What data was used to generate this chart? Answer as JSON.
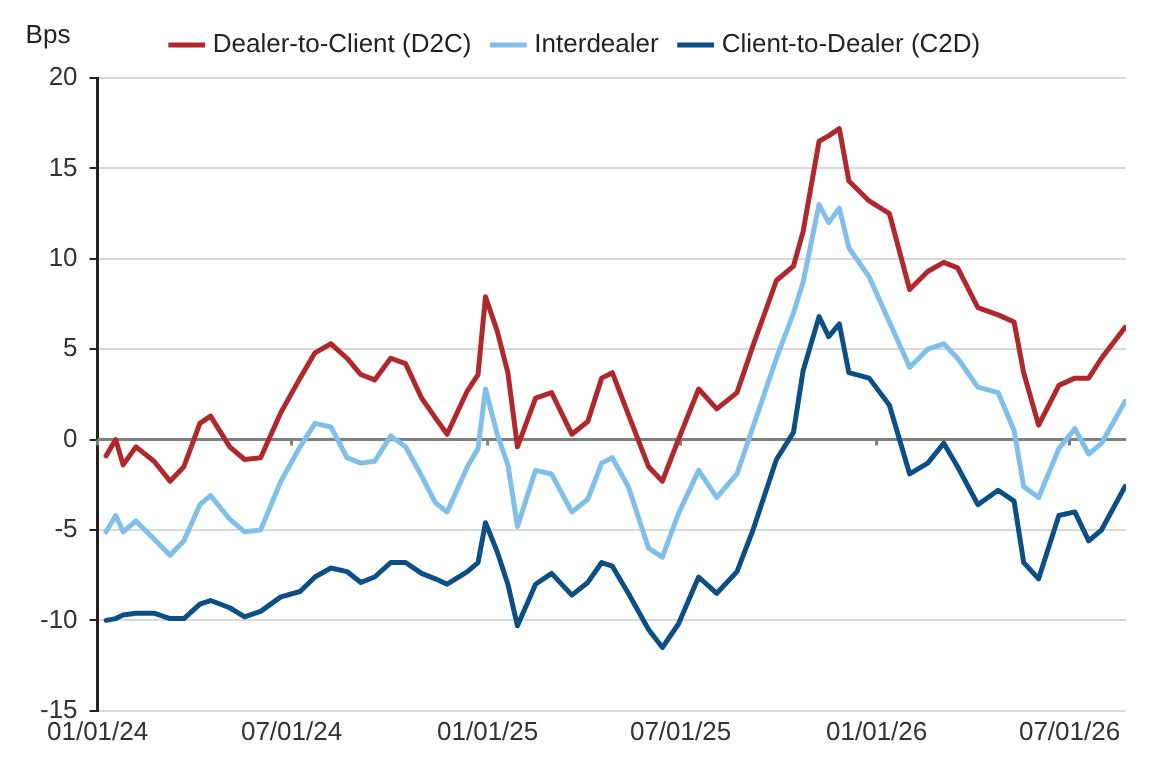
{
  "chart_data": {
    "type": "line",
    "ylabel": "Bps",
    "x": [
      "2024-01-09",
      "2024-01-18",
      "2024-01-25",
      "2024-02-06",
      "2024-02-23",
      "2024-03-09",
      "2024-03-22",
      "2024-04-06",
      "2024-04-16",
      "2024-05-04",
      "2024-05-18",
      "2024-06-02",
      "2024-06-21",
      "2024-07-09",
      "2024-07-23",
      "2024-08-07",
      "2024-08-22",
      "2024-09-04",
      "2024-09-17",
      "2024-10-02",
      "2024-10-16",
      "2024-10-31",
      "2024-11-13",
      "2024-11-24",
      "2024-12-13",
      "2024-12-23",
      "2024-12-30",
      "2025-01-10",
      "2025-01-20",
      "2025-01-29",
      "2025-02-15",
      "2025-03-02",
      "2025-03-21",
      "2025-04-05",
      "2025-04-18",
      "2025-04-28",
      "2025-05-13",
      "2025-06-01",
      "2025-06-14",
      "2025-06-29",
      "2025-07-18",
      "2025-08-04",
      "2025-08-23",
      "2025-09-07",
      "2025-09-29",
      "2025-10-15",
      "2025-10-24",
      "2025-11-08",
      "2025-11-17",
      "2025-11-27",
      "2025-12-06",
      "2025-12-25",
      "2026-01-13",
      "2026-02-01",
      "2026-02-18",
      "2026-03-05",
      "2026-03-18",
      "2026-04-06",
      "2026-04-25",
      "2026-05-10",
      "2026-05-19",
      "2026-06-02",
      "2026-06-21",
      "2026-07-06",
      "2026-07-19",
      "2026-07-31",
      "2026-08-22"
    ],
    "series": [
      {
        "name": "Dealer-to-Client (D2C)",
        "color": "#b0282c",
        "values": [
          -0.9,
          0,
          -1.4,
          -0.4,
          -1.2,
          -2.3,
          -1.5,
          0.9,
          1.3,
          -0.4,
          -1.1,
          -1,
          1.5,
          3.4,
          4.8,
          5.3,
          4.5,
          3.6,
          3.3,
          4.5,
          4.2,
          2.3,
          1.2,
          0.3,
          2.7,
          3.6,
          7.9,
          6,
          3.7,
          -0.4,
          2.3,
          2.6,
          0.3,
          1,
          3.4,
          3.7,
          1.4,
          -1.5,
          -2.3,
          0,
          2.8,
          1.7,
          2.6,
          5.2,
          8.8,
          9.6,
          11.5,
          16.5,
          16.8,
          17.2,
          14.3,
          13.2,
          12.5,
          8.3,
          9.3,
          9.8,
          9.5,
          7.3,
          6.9,
          6.5,
          3.7,
          0.8,
          3,
          3.4,
          3.4,
          4.5,
          6.2
        ]
      },
      {
        "name": "Interdealer",
        "color": "#7fbfea",
        "values": [
          -5.1,
          -4.2,
          -5.1,
          -4.5,
          -5.5,
          -6.4,
          -5.6,
          -3.6,
          -3.1,
          -4.4,
          -5.1,
          -5,
          -2.3,
          -0.4,
          0.9,
          0.7,
          -1,
          -1.3,
          -1.2,
          0.2,
          -0.4,
          -2,
          -3.5,
          -4,
          -1.5,
          -0.5,
          2.8,
          0.3,
          -1.4,
          -4.8,
          -1.7,
          -1.9,
          -4,
          -3.3,
          -1.3,
          -1,
          -2.6,
          -6,
          -6.5,
          -4.1,
          -1.7,
          -3.2,
          -1.9,
          0.7,
          4.5,
          7,
          8.7,
          13,
          12,
          12.8,
          10.6,
          9,
          6.5,
          4,
          5,
          5.3,
          4.5,
          2.9,
          2.6,
          0.5,
          -2.6,
          -3.2,
          -0.5,
          0.6,
          -0.8,
          -0.2,
          2.1
        ]
      },
      {
        "name": "Client-to-Dealer (C2D)",
        "color": "#0b4f84",
        "values": [
          -10,
          -9.9,
          -9.7,
          -9.6,
          -9.6,
          -9.9,
          -9.9,
          -9.1,
          -8.9,
          -9.3,
          -9.8,
          -9.5,
          -8.7,
          -8.4,
          -7.6,
          -7.1,
          -7.3,
          -7.9,
          -7.6,
          -6.8,
          -6.8,
          -7.4,
          -7.7,
          -8,
          -7.3,
          -6.8,
          -4.6,
          -6.2,
          -8,
          -10.3,
          -8,
          -7.4,
          -8.6,
          -7.9,
          -6.8,
          -7,
          -8.5,
          -10.5,
          -11.5,
          -10.2,
          -7.6,
          -8.5,
          -7.3,
          -5,
          -1.1,
          0.4,
          3.8,
          6.8,
          5.7,
          6.4,
          3.7,
          3.4,
          1.9,
          -1.9,
          -1.3,
          -0.2,
          -1.5,
          -3.6,
          -2.8,
          -3.4,
          -6.8,
          -7.7,
          -4.2,
          -4,
          -5.6,
          -5,
          -2.6
        ]
      }
    ],
    "xlim": [
      "2024-01-01",
      "2026-08-23"
    ],
    "xticks": [
      {
        "value": "2024-01-01",
        "label": "01/01/24"
      },
      {
        "value": "2024-07-01",
        "label": "07/01/24"
      },
      {
        "value": "2025-01-01",
        "label": "01/01/25"
      },
      {
        "value": "2025-07-01",
        "label": "07/01/25"
      },
      {
        "value": "2026-01-01",
        "label": "01/01/26"
      },
      {
        "value": "2026-07-01",
        "label": "07/01/26"
      }
    ],
    "ylim": [
      -15,
      20
    ],
    "yticks": [
      -15,
      -10,
      -5,
      0,
      5,
      10,
      15,
      20
    ],
    "ref_lines": [
      {
        "axis": "y",
        "value": 0,
        "color": "#7f7f7f"
      }
    ],
    "grid": "y",
    "legend": "top",
    "marker": "none",
    "line_style": "solid"
  }
}
